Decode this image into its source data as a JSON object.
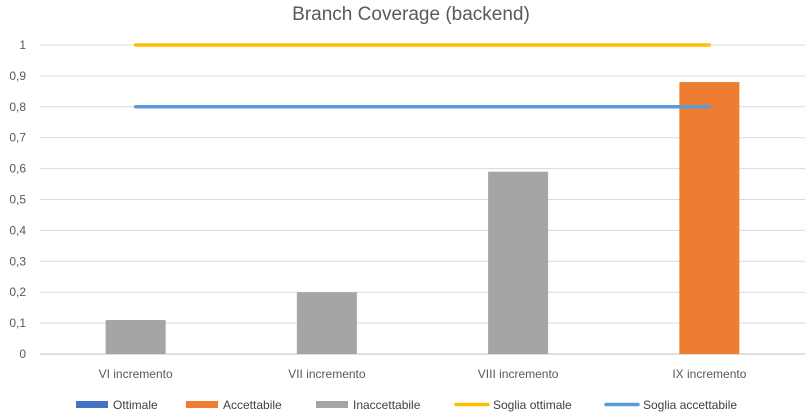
{
  "chart_data": {
    "type": "bar",
    "title": "Branch Coverage (backend)",
    "categories": [
      "VI incremento",
      "VII incremento",
      "VIII incremento",
      "IX incremento"
    ],
    "y_ticks": [
      "0",
      "0,1",
      "0,2",
      "0,3",
      "0,4",
      "0,5",
      "0,6",
      "0,7",
      "0,8",
      "0,9",
      "1"
    ],
    "ylim": [
      0,
      1
    ],
    "grid": true,
    "legend_position": "bottom",
    "series": [
      {
        "name": "Ottimale",
        "type": "bar",
        "color": "#4472C4",
        "values": [
          null,
          null,
          null,
          null
        ]
      },
      {
        "name": "Accettabile",
        "type": "bar",
        "color": "#ED7D31",
        "values": [
          null,
          null,
          null,
          0.88
        ]
      },
      {
        "name": "Inaccettabile",
        "type": "bar",
        "color": "#A5A5A5",
        "values": [
          0.11,
          0.2,
          0.59,
          null
        ]
      },
      {
        "name": "Soglia ottimale",
        "type": "line",
        "color": "#FFC000",
        "values": [
          1,
          1,
          1,
          1
        ]
      },
      {
        "name": "Soglia accettabile",
        "type": "line",
        "color": "#5B9BD5",
        "values": [
          0.8,
          0.8,
          0.8,
          0.8
        ]
      }
    ]
  }
}
